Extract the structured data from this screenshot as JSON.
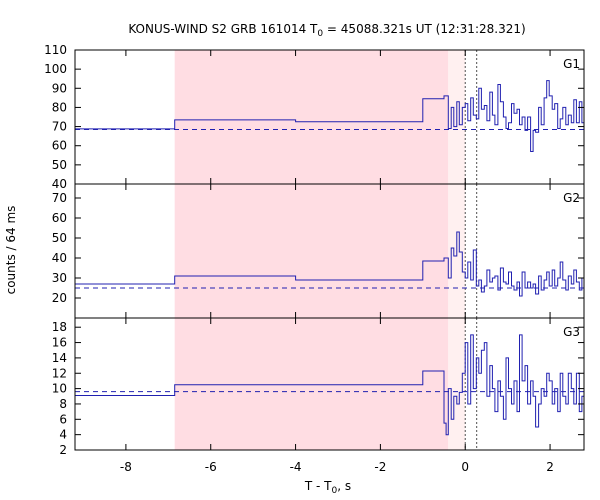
{
  "title": "KONUS-WIND S2 GRB 161014 T",
  "title_sub": "0",
  "title_rest": " = 45088.321s UT (12:31:28.321)",
  "ylabel": "counts / 64 ms",
  "xlabel_main": "T - T",
  "xlabel_sub": "0",
  "xlabel_tail": ", s",
  "chart_data": {
    "type": "line",
    "xlim": [
      -9.2,
      2.8
    ],
    "x_ticks": [
      -8,
      -6,
      -4,
      -2,
      0,
      2
    ],
    "colors": {
      "line": "#2020b0",
      "shade": "#ffdde3",
      "shade_light": "#fff0f0",
      "marker": "#505050"
    },
    "shaded_interval": [
      -6.85,
      -0.4
    ],
    "light_interval": [
      -0.4,
      0.0
    ],
    "vertical_markers": [
      0.0,
      0.27
    ],
    "panels": [
      {
        "name": "G1",
        "ylim": [
          40,
          110
        ],
        "y_ticks": [
          40,
          50,
          60,
          70,
          80,
          90,
          100,
          110
        ],
        "background": 68.5,
        "steps": [
          [
            -9.2,
            68.8
          ],
          [
            -6.85,
            73.5
          ],
          [
            -4.0,
            72.5
          ],
          [
            -1.0,
            84.5
          ],
          [
            -0.5,
            86.0
          ],
          [
            -0.4,
            69.0
          ],
          [
            -0.33,
            80.0
          ],
          [
            -0.27,
            70.0
          ],
          [
            -0.2,
            83.0
          ],
          [
            -0.14,
            71.0
          ],
          [
            -0.07,
            80.0
          ],
          [
            0.0,
            82.0
          ],
          [
            0.06,
            73.0
          ],
          [
            0.13,
            85.0
          ],
          [
            0.19,
            76.0
          ],
          [
            0.26,
            74.0
          ],
          [
            0.32,
            90.0
          ],
          [
            0.38,
            79.0
          ],
          [
            0.45,
            81.0
          ],
          [
            0.51,
            73.0
          ],
          [
            0.58,
            88.0
          ],
          [
            0.64,
            76.0
          ],
          [
            0.7,
            71.0
          ],
          [
            0.77,
            92.0
          ],
          [
            0.83,
            83.0
          ],
          [
            0.9,
            75.0
          ],
          [
            0.96,
            69.0
          ],
          [
            1.02,
            72.0
          ],
          [
            1.09,
            82.0
          ],
          [
            1.15,
            77.0
          ],
          [
            1.22,
            79.0
          ],
          [
            1.28,
            71.0
          ],
          [
            1.34,
            75.0
          ],
          [
            1.41,
            68.0
          ],
          [
            1.47,
            75.0
          ],
          [
            1.54,
            57.0
          ],
          [
            1.6,
            68.0
          ],
          [
            1.66,
            67.0
          ],
          [
            1.73,
            80.0
          ],
          [
            1.79,
            71.0
          ],
          [
            1.86,
            85.0
          ],
          [
            1.92,
            94.0
          ],
          [
            1.98,
            86.0
          ],
          [
            2.05,
            79.0
          ],
          [
            2.11,
            82.0
          ],
          [
            2.18,
            69.0
          ],
          [
            2.24,
            74.0
          ],
          [
            2.3,
            80.0
          ],
          [
            2.37,
            71.0
          ],
          [
            2.43,
            76.0
          ],
          [
            2.5,
            72.0
          ],
          [
            2.56,
            84.0
          ],
          [
            2.62,
            72.0
          ],
          [
            2.69,
            83.0
          ],
          [
            2.75,
            72.0
          ]
        ]
      },
      {
        "name": "G2",
        "ylim": [
          10,
          77
        ],
        "y_ticks": [
          20,
          30,
          40,
          50,
          60,
          70
        ],
        "background": 25.0,
        "steps": [
          [
            -9.2,
            27.0
          ],
          [
            -6.85,
            31.0
          ],
          [
            -4.0,
            29.0
          ],
          [
            -1.0,
            38.5
          ],
          [
            -0.5,
            40.0
          ],
          [
            -0.4,
            30.0
          ],
          [
            -0.33,
            45.0
          ],
          [
            -0.27,
            41.0
          ],
          [
            -0.2,
            53.0
          ],
          [
            -0.14,
            43.0
          ],
          [
            -0.07,
            33.0
          ],
          [
            0.0,
            30.0
          ],
          [
            0.06,
            38.0
          ],
          [
            0.13,
            29.0
          ],
          [
            0.19,
            44.0
          ],
          [
            0.26,
            26.0
          ],
          [
            0.32,
            29.0
          ],
          [
            0.38,
            23.0
          ],
          [
            0.45,
            26.0
          ],
          [
            0.51,
            34.0
          ],
          [
            0.58,
            28.0
          ],
          [
            0.64,
            30.0
          ],
          [
            0.7,
            31.0
          ],
          [
            0.77,
            24.0
          ],
          [
            0.83,
            35.0
          ],
          [
            0.9,
            28.0
          ],
          [
            0.96,
            27.0
          ],
          [
            1.02,
            33.0
          ],
          [
            1.09,
            26.0
          ],
          [
            1.15,
            24.0
          ],
          [
            1.22,
            28.0
          ],
          [
            1.28,
            21.0
          ],
          [
            1.34,
            33.0
          ],
          [
            1.41,
            25.0
          ],
          [
            1.47,
            28.0
          ],
          [
            1.54,
            25.0
          ],
          [
            1.6,
            27.0
          ],
          [
            1.66,
            22.0
          ],
          [
            1.73,
            31.0
          ],
          [
            1.79,
            24.0
          ],
          [
            1.86,
            29.0
          ],
          [
            1.92,
            33.0
          ],
          [
            1.98,
            26.0
          ],
          [
            2.05,
            34.0
          ],
          [
            2.11,
            26.0
          ],
          [
            2.18,
            30.0
          ],
          [
            2.24,
            38.0
          ],
          [
            2.3,
            29.0
          ],
          [
            2.37,
            24.0
          ],
          [
            2.43,
            31.0
          ],
          [
            2.5,
            27.0
          ],
          [
            2.56,
            34.0
          ],
          [
            2.62,
            28.0
          ],
          [
            2.69,
            24.0
          ],
          [
            2.75,
            30.0
          ]
        ]
      },
      {
        "name": "G3",
        "ylim": [
          2,
          19.2
        ],
        "y_ticks": [
          2,
          4,
          6,
          8,
          10,
          12,
          14,
          16,
          18
        ],
        "background": 9.6,
        "steps": [
          [
            -9.2,
            9.1
          ],
          [
            -6.85,
            10.5
          ],
          [
            -1.0,
            12.3
          ],
          [
            -0.5,
            5.5
          ],
          [
            -0.45,
            4.0
          ],
          [
            -0.4,
            10.0
          ],
          [
            -0.33,
            6.0
          ],
          [
            -0.27,
            9.0
          ],
          [
            -0.2,
            8.0
          ],
          [
            -0.14,
            9.5
          ],
          [
            -0.07,
            12.0
          ],
          [
            0.0,
            16.0
          ],
          [
            0.06,
            8.0
          ],
          [
            0.13,
            17.0
          ],
          [
            0.19,
            10.0
          ],
          [
            0.26,
            14.0
          ],
          [
            0.32,
            12.0
          ],
          [
            0.38,
            15.0
          ],
          [
            0.45,
            16.0
          ],
          [
            0.51,
            9.0
          ],
          [
            0.58,
            13.0
          ],
          [
            0.64,
            10.0
          ],
          [
            0.7,
            7.0
          ],
          [
            0.77,
            11.0
          ],
          [
            0.83,
            9.0
          ],
          [
            0.9,
            6.0
          ],
          [
            0.96,
            14.0
          ],
          [
            1.02,
            10.0
          ],
          [
            1.09,
            8.0
          ],
          [
            1.15,
            11.0
          ],
          [
            1.22,
            7.0
          ],
          [
            1.28,
            17.0
          ],
          [
            1.34,
            11.0
          ],
          [
            1.41,
            13.0
          ],
          [
            1.47,
            8.0
          ],
          [
            1.54,
            11.0
          ],
          [
            1.6,
            9.0
          ],
          [
            1.66,
            5.0
          ],
          [
            1.73,
            8.0
          ],
          [
            1.79,
            10.0
          ],
          [
            1.86,
            9.0
          ],
          [
            1.92,
            12.0
          ],
          [
            1.98,
            11.0
          ],
          [
            2.05,
            8.0
          ],
          [
            2.11,
            10.0
          ],
          [
            2.18,
            7.0
          ],
          [
            2.24,
            12.0
          ],
          [
            2.3,
            9.0
          ],
          [
            2.37,
            8.0
          ],
          [
            2.43,
            12.0
          ],
          [
            2.5,
            10.0
          ],
          [
            2.56,
            8.0
          ],
          [
            2.62,
            12.0
          ],
          [
            2.69,
            7.0
          ],
          [
            2.75,
            9.0
          ]
        ]
      }
    ]
  }
}
